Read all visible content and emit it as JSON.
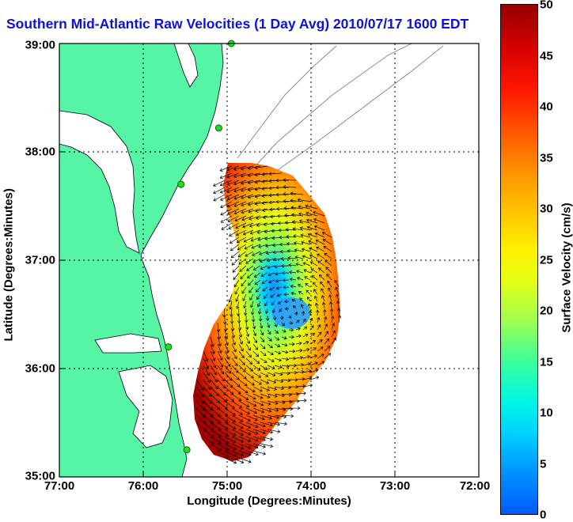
{
  "title": "Southern Mid-Atlantic Raw Velocities (1 Day Avg) 2010/07/17 1600 EDT",
  "x_axis": {
    "label": "Longitude (Degrees:Minutes)",
    "ticks": [
      "77:00",
      "76:00",
      "75:00",
      "74:00",
      "73:00",
      "72:00"
    ]
  },
  "y_axis": {
    "label": "Latitude (Degrees:Minutes)",
    "ticks": [
      "39:00",
      "38:00",
      "37:00",
      "36:00",
      "35:00"
    ]
  },
  "colorbar": {
    "label": "Surface Velocity (cm/s)",
    "ticks": [
      "0",
      "5",
      "10",
      "15",
      "20",
      "25",
      "30",
      "35",
      "40",
      "45",
      "50"
    ],
    "range": [
      0,
      50
    ],
    "colors_low_to_high": [
      "#005aff",
      "#00d2ff",
      "#3cff9c",
      "#e6ff14",
      "#ffc000",
      "#ff5000",
      "#960000"
    ]
  },
  "map": {
    "lon_range": [
      -77,
      -72
    ],
    "lat_range": [
      35,
      39
    ],
    "grid": true,
    "land_color": "#55f5a5",
    "radar_sites": [
      {
        "lon": -74.95,
        "lat": 39.0
      },
      {
        "lon": -75.1,
        "lat": 38.22
      },
      {
        "lon": -75.55,
        "lat": 37.7
      },
      {
        "lon": -75.7,
        "lat": 36.2
      },
      {
        "lon": -75.48,
        "lat": 35.25
      }
    ],
    "eddy_center": {
      "lon": -74.25,
      "lat": 36.5
    }
  }
}
